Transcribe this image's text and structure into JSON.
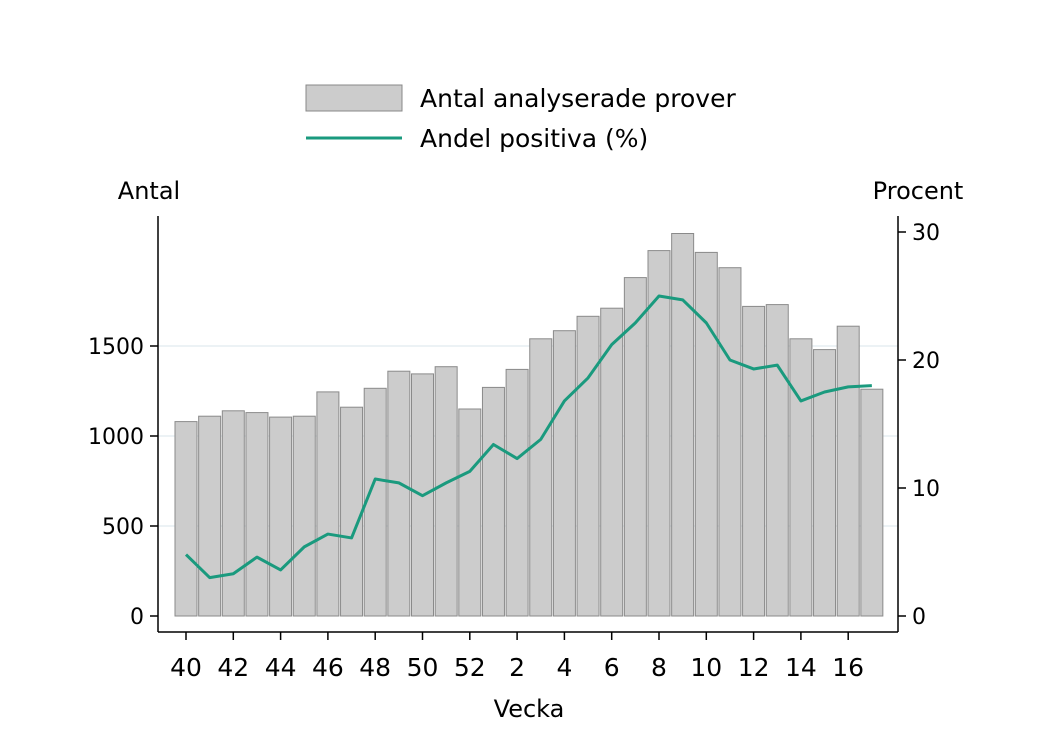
{
  "chart_data": {
    "type": "bar+line",
    "xlabel": "Vecka",
    "ylabel_left": "Antal",
    "ylabel_right": "Procent",
    "x_tick_labels": [
      "40",
      "42",
      "44",
      "46",
      "48",
      "50",
      "52",
      "2",
      "4",
      "6",
      "8",
      "10",
      "12",
      "14",
      "16"
    ],
    "weeks": [
      "40",
      "41",
      "42",
      "43",
      "44",
      "45",
      "46",
      "47",
      "48",
      "49",
      "50",
      "51",
      "52",
      "1",
      "2",
      "3",
      "4",
      "5",
      "6",
      "7",
      "8",
      "9",
      "10",
      "11",
      "12",
      "13",
      "14",
      "15",
      "16",
      "17"
    ],
    "left_axis": {
      "ticks": [
        0,
        500,
        1000,
        1500
      ],
      "ylim": [
        0,
        2200
      ]
    },
    "right_axis": {
      "ticks": [
        0,
        10,
        20,
        30
      ],
      "ylim": [
        0,
        30
      ]
    },
    "series": [
      {
        "name": "Antal analyserade prover",
        "type": "bar",
        "axis": "left",
        "color": "#cccccc",
        "values": [
          1080,
          1110,
          1140,
          1130,
          1105,
          1110,
          1245,
          1160,
          1265,
          1360,
          1345,
          1385,
          1150,
          1270,
          1370,
          1540,
          1585,
          1665,
          1710,
          1880,
          2030,
          2125,
          2020,
          1935,
          1720,
          1730,
          1540,
          1480,
          1610,
          1260
        ]
      },
      {
        "name": "Andel positiva (%)",
        "type": "line",
        "axis": "right",
        "color": "#1a9a7e",
        "values": [
          4.8,
          3.0,
          3.3,
          4.6,
          3.6,
          5.4,
          6.4,
          6.1,
          10.7,
          10.4,
          9.4,
          10.4,
          11.3,
          13.4,
          12.3,
          13.8,
          16.8,
          18.6,
          21.2,
          22.9,
          25.0,
          24.7,
          22.9,
          20.0,
          19.3,
          19.6,
          16.8,
          17.5,
          17.9,
          18.0
        ]
      }
    ],
    "legend_position": "top-center",
    "grid": "horizontal-light"
  }
}
